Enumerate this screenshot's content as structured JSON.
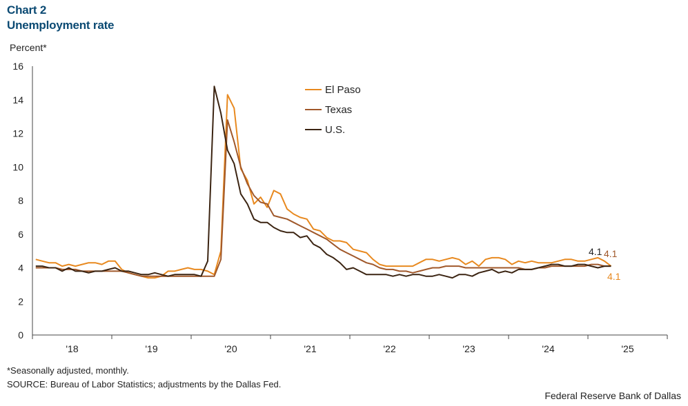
{
  "header": {
    "chart_number": "Chart 2",
    "chart_title": "Unemployment rate"
  },
  "footer": {
    "note": "*Seasonally adjusted, monthly.",
    "source": "SOURCE: Bureau of Labor Statistics; adjustments by the Dallas Fed.",
    "credit": "Federal Reserve Bank of Dallas"
  },
  "colors": {
    "el_paso": "#e8891f",
    "texas": "#a0582a",
    "us": "#3b2412",
    "title": "#0b4a73"
  },
  "chart_data": {
    "type": "line",
    "ylabel": "Percent*",
    "ylim": [
      0,
      16
    ],
    "yticks": [
      0,
      2,
      4,
      6,
      8,
      10,
      12,
      14,
      16
    ],
    "xtick_labels": [
      "'18",
      "'19",
      "'20",
      "'21",
      "'22",
      "'23",
      "'24",
      "'25"
    ],
    "x_start": "2018-01",
    "legend": [
      "El Paso",
      "Texas",
      "U.S."
    ],
    "legend_position": "top-center",
    "end_labels": [
      {
        "series": "U.S.",
        "text": "4.1"
      },
      {
        "series": "Texas",
        "text": "4.1"
      },
      {
        "series": "El Paso",
        "text": "4.1"
      }
    ],
    "series": [
      {
        "name": "El Paso",
        "color": "#e8891f",
        "values": [
          4.5,
          4.4,
          4.3,
          4.3,
          4.1,
          4.2,
          4.1,
          4.2,
          4.3,
          4.3,
          4.2,
          4.4,
          4.4,
          3.9,
          3.7,
          3.6,
          3.5,
          3.4,
          3.4,
          3.5,
          3.8,
          3.8,
          3.9,
          4.0,
          3.9,
          3.9,
          3.8,
          3.6,
          5.0,
          14.3,
          13.5,
          9.9,
          9.2,
          7.8,
          8.2,
          7.6,
          8.6,
          8.4,
          7.5,
          7.2,
          7.0,
          6.9,
          6.3,
          6.2,
          5.8,
          5.6,
          5.6,
          5.5,
          5.1,
          5.0,
          4.9,
          4.5,
          4.2,
          4.1,
          4.1,
          4.1,
          4.1,
          4.1,
          4.3,
          4.5,
          4.5,
          4.4,
          4.5,
          4.6,
          4.5,
          4.2,
          4.4,
          4.1,
          4.5,
          4.6,
          4.6,
          4.5,
          4.2,
          4.4,
          4.3,
          4.4,
          4.3,
          4.3,
          4.3,
          4.4,
          4.5,
          4.5,
          4.4,
          4.4,
          4.5,
          4.6,
          4.4,
          4.1
        ]
      },
      {
        "name": "Texas",
        "color": "#a0582a",
        "values": [
          4.0,
          4.0,
          4.0,
          4.0,
          3.9,
          3.9,
          3.9,
          3.8,
          3.8,
          3.8,
          3.8,
          3.8,
          3.8,
          3.8,
          3.7,
          3.6,
          3.5,
          3.5,
          3.5,
          3.5,
          3.5,
          3.5,
          3.5,
          3.5,
          3.5,
          3.5,
          3.5,
          3.5,
          4.5,
          12.8,
          11.5,
          10.0,
          9.0,
          8.3,
          7.9,
          7.8,
          7.1,
          7.0,
          6.9,
          6.7,
          6.5,
          6.3,
          6.1,
          5.9,
          5.7,
          5.4,
          5.1,
          4.9,
          4.7,
          4.5,
          4.3,
          4.2,
          4.0,
          3.9,
          3.9,
          3.8,
          3.8,
          3.7,
          3.8,
          3.9,
          4.0,
          4.0,
          4.1,
          4.1,
          4.1,
          4.0,
          4.0,
          4.0,
          4.0,
          4.0,
          4.0,
          4.0,
          4.0,
          4.0,
          3.9,
          3.9,
          4.0,
          4.0,
          4.1,
          4.1,
          4.1,
          4.1,
          4.1,
          4.1,
          4.2,
          4.2,
          4.1,
          4.1
        ]
      },
      {
        "name": "U.S.",
        "color": "#3b2412",
        "values": [
          4.1,
          4.1,
          4.0,
          4.0,
          3.8,
          4.0,
          3.8,
          3.8,
          3.7,
          3.8,
          3.8,
          3.9,
          4.0,
          3.8,
          3.8,
          3.7,
          3.6,
          3.6,
          3.7,
          3.6,
          3.5,
          3.6,
          3.6,
          3.6,
          3.6,
          3.5,
          4.4,
          14.8,
          13.2,
          11.0,
          10.2,
          8.4,
          7.8,
          6.9,
          6.7,
          6.7,
          6.4,
          6.2,
          6.1,
          6.1,
          5.8,
          5.9,
          5.4,
          5.2,
          4.8,
          4.6,
          4.3,
          3.9,
          4.0,
          3.8,
          3.6,
          3.6,
          3.6,
          3.6,
          3.5,
          3.6,
          3.5,
          3.6,
          3.6,
          3.5,
          3.5,
          3.6,
          3.5,
          3.4,
          3.6,
          3.6,
          3.5,
          3.7,
          3.8,
          3.9,
          3.7,
          3.8,
          3.7,
          3.9,
          3.9,
          3.9,
          4.0,
          4.1,
          4.2,
          4.2,
          4.1,
          4.1,
          4.2,
          4.2,
          4.1,
          4.0,
          4.1,
          4.1
        ]
      }
    ]
  }
}
